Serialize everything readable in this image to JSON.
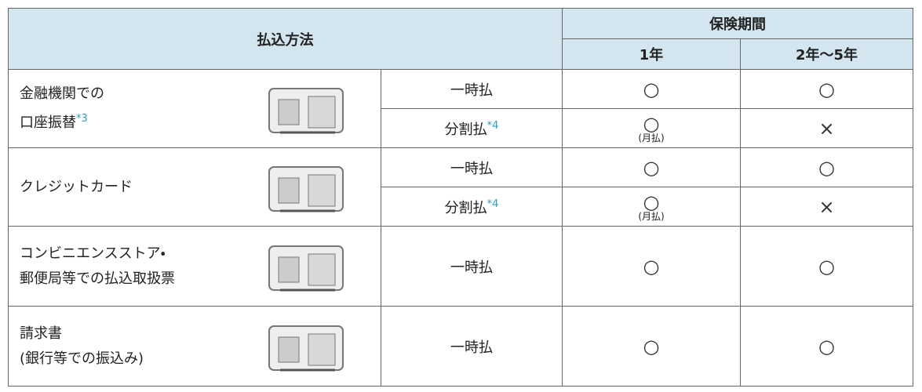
{
  "header": {
    "method": "払込方法",
    "period": "保険期間",
    "year1": "1年",
    "year2_5": "2年〜5年"
  },
  "rows": [
    {
      "method": [
        "金融機関での",
        "口座振替"
      ],
      "note": "*3",
      "payments": [
        {
          "type": "一時払",
          "year1": "○",
          "year2_5": "○"
        },
        {
          "type": "分割払",
          "note": "*4",
          "year1": "○",
          "year1_note": "(月払)",
          "year2_5": "×"
        }
      ]
    },
    {
      "method": [
        "クレジットカード"
      ],
      "payments": [
        {
          "type": "一時払",
          "year1": "○",
          "year2_5": "○"
        },
        {
          "type": "分割払",
          "note": "*4",
          "year1": "○",
          "year1_note": "(月払)",
          "year2_5": "×"
        }
      ]
    },
    {
      "method": [
        "コンビニエンスストア・",
        "郵便局等での払込取扱票"
      ],
      "payments": [
        {
          "type": "一時払",
          "year1": "○",
          "year2_5": "○"
        }
      ]
    },
    {
      "method": [
        "請求書",
        "(銀行等での振込み)"
      ],
      "payments": [
        {
          "type": "一時払",
          "year1": "○",
          "year2_5": "○"
        }
      ]
    }
  ]
}
